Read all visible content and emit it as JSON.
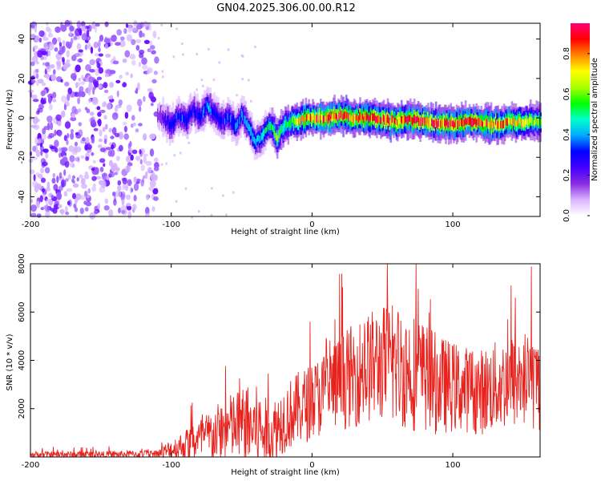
{
  "title": "GN04.2025.306.00.00.R12",
  "colors": {
    "snr_line": "#e8231e",
    "axis": "#000000",
    "cb_scale": [
      "#ffffff",
      "#d9b3ff",
      "#8a2be2",
      "#4400ff",
      "#0000ff",
      "#00aaff",
      "#00ffcc",
      "#00ff00",
      "#aaff00",
      "#ffff00",
      "#ff8800",
      "#ff0000",
      "#ff0077"
    ]
  },
  "chart_data": [
    {
      "type": "heatmap",
      "name": "spectrogram",
      "xlabel": "Height of straight line (km)",
      "ylabel": "Frequency (Hz)",
      "xlim": [
        -200,
        162
      ],
      "ylim": [
        -50,
        48
      ],
      "xticks": [
        -200,
        -100,
        0,
        100
      ],
      "yticks": [
        -40,
        -20,
        0,
        20,
        40
      ],
      "colorbar": {
        "label": "Normalized spectral amplitude",
        "range": [
          0,
          0.95
        ],
        "ticks": [
          "0.0",
          "0.2",
          "0.4",
          "0.6",
          "0.8"
        ],
        "tick_values": [
          0,
          0.2,
          0.4,
          0.6,
          0.8
        ]
      },
      "noise_region": [
        -200,
        -110
      ],
      "ridge": {
        "x": [
          -110,
          -100,
          -95,
          -90,
          -85,
          -80,
          -75,
          -70,
          -65,
          -60,
          -55,
          -50,
          -45,
          -40,
          -35,
          -30,
          -25,
          -20,
          -15,
          -10,
          0,
          10,
          20,
          30,
          40,
          50,
          60,
          70,
          80,
          90,
          100,
          110,
          120,
          130,
          140,
          150,
          160
        ],
        "y": [
          2,
          -4,
          2,
          -2,
          4,
          0,
          6,
          2,
          -2,
          0,
          -4,
          2,
          -6,
          -12,
          -8,
          -4,
          -10,
          -4,
          -2,
          -1,
          0,
          0,
          1,
          0,
          0,
          -1,
          -2,
          -1,
          -2,
          -3,
          -3,
          -2,
          -3,
          -3,
          -2,
          -2,
          -2
        ],
        "amp": [
          0.15,
          0.35,
          0.3,
          0.35,
          0.3,
          0.3,
          0.4,
          0.35,
          0.3,
          0.35,
          0.4,
          0.35,
          0.4,
          0.45,
          0.45,
          0.5,
          0.6,
          0.55,
          0.6,
          0.7,
          0.8,
          0.85,
          0.85,
          0.8,
          0.85,
          0.85,
          0.8,
          0.85,
          0.85,
          0.85,
          0.85,
          0.8,
          0.85,
          0.8,
          0.75,
          0.7,
          0.6
        ]
      }
    },
    {
      "type": "line",
      "name": "snr",
      "xlabel": "Height of straight line (km)",
      "ylabel": "SNR (10 * v/v)",
      "xlim": [
        -200,
        162
      ],
      "ylim": [
        0,
        8000
      ],
      "xticks": [
        -200,
        -100,
        0,
        100
      ],
      "yticks": [
        2000,
        4000,
        6000,
        8000
      ],
      "envelope": {
        "x": [
          -200,
          -150,
          -110,
          -100,
          -90,
          -80,
          -70,
          -60,
          -50,
          -40,
          -30,
          -20,
          -10,
          0,
          10,
          20,
          30,
          40,
          50,
          60,
          70,
          80,
          90,
          100,
          110,
          120,
          130,
          140,
          150,
          162
        ],
        "base": [
          100,
          100,
          120,
          300,
          500,
          700,
          900,
          1200,
          1300,
          1200,
          900,
          1600,
          2000,
          2300,
          2700,
          3100,
          3400,
          3700,
          3900,
          3800,
          3600,
          3300,
          3000,
          2900,
          2800,
          2700,
          2900,
          3100,
          3200,
          3000
        ],
        "amp": [
          150,
          150,
          200,
          500,
          700,
          1000,
          1300,
          1500,
          1800,
          2000,
          1500,
          1600,
          1700,
          1800,
          2000,
          2200,
          2400,
          2600,
          2700,
          2900,
          2800,
          2600,
          2300,
          2100,
          2000,
          2000,
          2100,
          2200,
          2300,
          2200
        ]
      }
    }
  ]
}
